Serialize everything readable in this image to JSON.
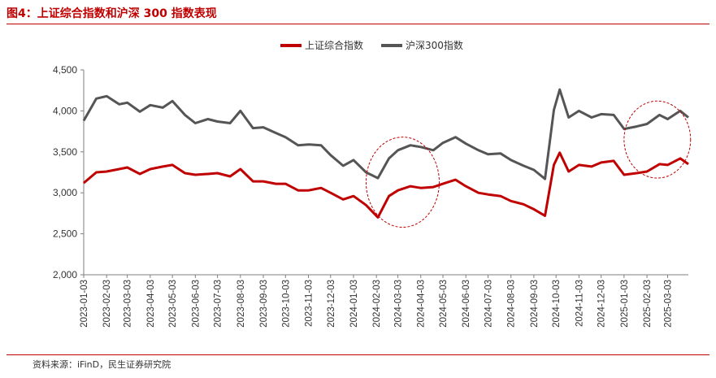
{
  "figure": {
    "title": "图4：上证综合指数和沪深 300 指数表现",
    "source": "资料来源：iFinD，民生证券研究院"
  },
  "chart_data": {
    "type": "line",
    "ylim": [
      2000,
      4500
    ],
    "y_ticks": [
      "2,000",
      "2,500",
      "3,000",
      "3,500",
      "4,000",
      "4,500"
    ],
    "y_tick_values": [
      2000,
      2500,
      3000,
      3500,
      4000,
      4500
    ],
    "x_tick_labels": [
      "2023-01-03",
      "2023-02-03",
      "2023-03-03",
      "2023-04-03",
      "2023-05-03",
      "2023-06-03",
      "2023-07-03",
      "2023-08-03",
      "2023-09-03",
      "2023-10-03",
      "2023-11-03",
      "2023-12-03",
      "2024-01-03",
      "2024-02-03",
      "2024-03-03",
      "2024-04-03",
      "2024-05-03",
      "2024-06-03",
      "2024-07-03",
      "2024-08-03",
      "2024-09-03",
      "2024-10-03",
      "2024-11-03",
      "2024-12-03",
      "2025-01-03",
      "2025-02-03",
      "2025-03-03"
    ],
    "x_end": "2025-03-31",
    "legend_position": "top-center",
    "grid": false,
    "series": [
      {
        "name": "上证综合指数",
        "color": "#c00000",
        "points": [
          [
            "2023-01-03",
            3120
          ],
          [
            "2023-01-20",
            3250
          ],
          [
            "2023-02-03",
            3260
          ],
          [
            "2023-02-20",
            3290
          ],
          [
            "2023-03-03",
            3310
          ],
          [
            "2023-03-20",
            3230
          ],
          [
            "2023-04-03",
            3290
          ],
          [
            "2023-04-20",
            3320
          ],
          [
            "2023-05-03",
            3340
          ],
          [
            "2023-05-20",
            3240
          ],
          [
            "2023-06-03",
            3220
          ],
          [
            "2023-06-20",
            3230
          ],
          [
            "2023-07-03",
            3240
          ],
          [
            "2023-07-20",
            3200
          ],
          [
            "2023-08-03",
            3290
          ],
          [
            "2023-08-20",
            3140
          ],
          [
            "2023-09-03",
            3140
          ],
          [
            "2023-09-20",
            3110
          ],
          [
            "2023-10-03",
            3110
          ],
          [
            "2023-10-20",
            3030
          ],
          [
            "2023-11-03",
            3030
          ],
          [
            "2023-11-20",
            3060
          ],
          [
            "2023-12-03",
            3000
          ],
          [
            "2023-12-20",
            2920
          ],
          [
            "2024-01-03",
            2960
          ],
          [
            "2024-01-20",
            2850
          ],
          [
            "2024-02-05",
            2700
          ],
          [
            "2024-02-20",
            2960
          ],
          [
            "2024-03-03",
            3030
          ],
          [
            "2024-03-20",
            3080
          ],
          [
            "2024-04-03",
            3060
          ],
          [
            "2024-04-20",
            3070
          ],
          [
            "2024-05-03",
            3110
          ],
          [
            "2024-05-20",
            3160
          ],
          [
            "2024-06-03",
            3080
          ],
          [
            "2024-06-20",
            3000
          ],
          [
            "2024-07-03",
            2980
          ],
          [
            "2024-07-20",
            2960
          ],
          [
            "2024-08-03",
            2900
          ],
          [
            "2024-08-20",
            2860
          ],
          [
            "2024-09-03",
            2800
          ],
          [
            "2024-09-18",
            2720
          ],
          [
            "2024-09-30",
            3340
          ],
          [
            "2024-10-08",
            3490
          ],
          [
            "2024-10-20",
            3260
          ],
          [
            "2024-11-03",
            3340
          ],
          [
            "2024-11-20",
            3320
          ],
          [
            "2024-12-03",
            3370
          ],
          [
            "2024-12-20",
            3390
          ],
          [
            "2025-01-03",
            3220
          ],
          [
            "2025-01-20",
            3240
          ],
          [
            "2025-02-03",
            3260
          ],
          [
            "2025-02-20",
            3350
          ],
          [
            "2025-03-03",
            3340
          ],
          [
            "2025-03-20",
            3420
          ],
          [
            "2025-03-31",
            3350
          ]
        ]
      },
      {
        "name": "沪深300指数",
        "color": "#555555",
        "points": [
          [
            "2023-01-03",
            3880
          ],
          [
            "2023-01-20",
            4150
          ],
          [
            "2023-02-03",
            4180
          ],
          [
            "2023-02-20",
            4080
          ],
          [
            "2023-03-03",
            4100
          ],
          [
            "2023-03-20",
            3990
          ],
          [
            "2023-04-03",
            4070
          ],
          [
            "2023-04-20",
            4040
          ],
          [
            "2023-05-03",
            4120
          ],
          [
            "2023-05-20",
            3950
          ],
          [
            "2023-06-03",
            3850
          ],
          [
            "2023-06-20",
            3900
          ],
          [
            "2023-07-03",
            3870
          ],
          [
            "2023-07-20",
            3850
          ],
          [
            "2023-08-03",
            4000
          ],
          [
            "2023-08-20",
            3790
          ],
          [
            "2023-09-03",
            3800
          ],
          [
            "2023-09-20",
            3730
          ],
          [
            "2023-10-03",
            3680
          ],
          [
            "2023-10-20",
            3580
          ],
          [
            "2023-11-03",
            3590
          ],
          [
            "2023-11-20",
            3580
          ],
          [
            "2023-12-03",
            3460
          ],
          [
            "2023-12-20",
            3330
          ],
          [
            "2024-01-03",
            3400
          ],
          [
            "2024-01-20",
            3250
          ],
          [
            "2024-02-05",
            3180
          ],
          [
            "2024-02-20",
            3420
          ],
          [
            "2024-03-03",
            3520
          ],
          [
            "2024-03-20",
            3580
          ],
          [
            "2024-04-03",
            3560
          ],
          [
            "2024-04-20",
            3520
          ],
          [
            "2024-05-03",
            3610
          ],
          [
            "2024-05-20",
            3680
          ],
          [
            "2024-06-03",
            3600
          ],
          [
            "2024-06-20",
            3520
          ],
          [
            "2024-07-03",
            3470
          ],
          [
            "2024-07-20",
            3480
          ],
          [
            "2024-08-03",
            3400
          ],
          [
            "2024-08-20",
            3330
          ],
          [
            "2024-09-03",
            3280
          ],
          [
            "2024-09-18",
            3170
          ],
          [
            "2024-09-30",
            4010
          ],
          [
            "2024-10-08",
            4260
          ],
          [
            "2024-10-20",
            3920
          ],
          [
            "2024-11-03",
            4000
          ],
          [
            "2024-11-20",
            3920
          ],
          [
            "2024-12-03",
            3960
          ],
          [
            "2024-12-20",
            3950
          ],
          [
            "2025-01-03",
            3780
          ],
          [
            "2025-01-20",
            3810
          ],
          [
            "2025-02-03",
            3840
          ],
          [
            "2025-02-20",
            3950
          ],
          [
            "2025-03-03",
            3900
          ],
          [
            "2025-03-20",
            4000
          ],
          [
            "2025-03-31",
            3920
          ]
        ]
      }
    ],
    "annotations": [
      {
        "type": "ellipse",
        "color": "#c00000",
        "style": "dashed",
        "x_from": "2024-01-20",
        "x_to": "2024-04-28",
        "y_from": 2580,
        "y_to": "3680"
      },
      {
        "type": "ellipse",
        "color": "#c00000",
        "style": "dashed",
        "x_from": "2025-01-03",
        "x_to": "2025-04-03",
        "y_from": 3180,
        "y_to": "4120"
      }
    ]
  }
}
